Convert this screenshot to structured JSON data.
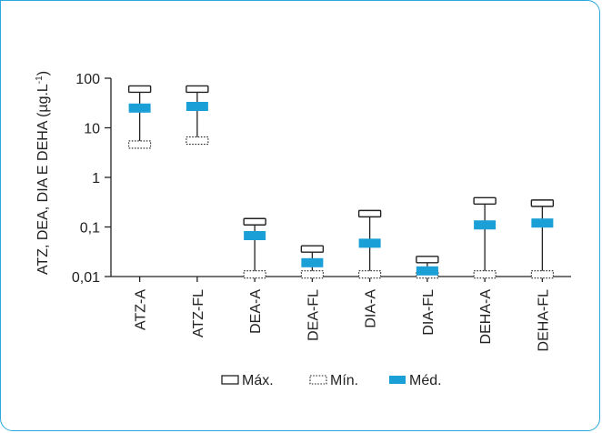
{
  "chart_data": {
    "type": "box",
    "categories": [
      "ATZ-A",
      "ATZ-FL",
      "DEA-A",
      "DEA-FL",
      "DIA-A",
      "DIA-FL",
      "DEHA-A",
      "DEHA-FL"
    ],
    "yscale": "log",
    "ylim": [
      0.01,
      100
    ],
    "yticks": [
      {
        "value": 100,
        "label": "100"
      },
      {
        "value": 10,
        "label": "10"
      },
      {
        "value": 1,
        "label": "1"
      },
      {
        "value": 0.1,
        "label": "0,1"
      },
      {
        "value": 0.01,
        "label": "0,01"
      }
    ],
    "ylabel": "ATZ, DEA, DIA E DEHA (µg.L",
    "ylabel_sup": "-1",
    "ylabel_close": ")",
    "series": [
      {
        "name": "Máx.",
        "values": [
          52,
          52,
          0.11,
          0.031,
          0.16,
          0.019,
          0.29,
          0.26
        ]
      },
      {
        "name": "Mín.",
        "values": [
          5.0,
          6.0,
          0.012,
          0.012,
          0.012,
          0.012,
          0.012,
          0.012
        ]
      },
      {
        "name": "Méd.",
        "values": [
          25,
          27,
          0.067,
          0.019,
          0.047,
          0.013,
          0.11,
          0.12
        ]
      }
    ],
    "legend": {
      "position": "bottom",
      "items": [
        {
          "label": "Máx.",
          "style": "solid-outline"
        },
        {
          "label": "Mín.",
          "style": "dotted-outline"
        },
        {
          "label": "Méd.",
          "style": "filled"
        }
      ]
    },
    "colors": {
      "median": "#1a9fd6",
      "frame": "#29a9dc",
      "ink": "#222222"
    }
  }
}
